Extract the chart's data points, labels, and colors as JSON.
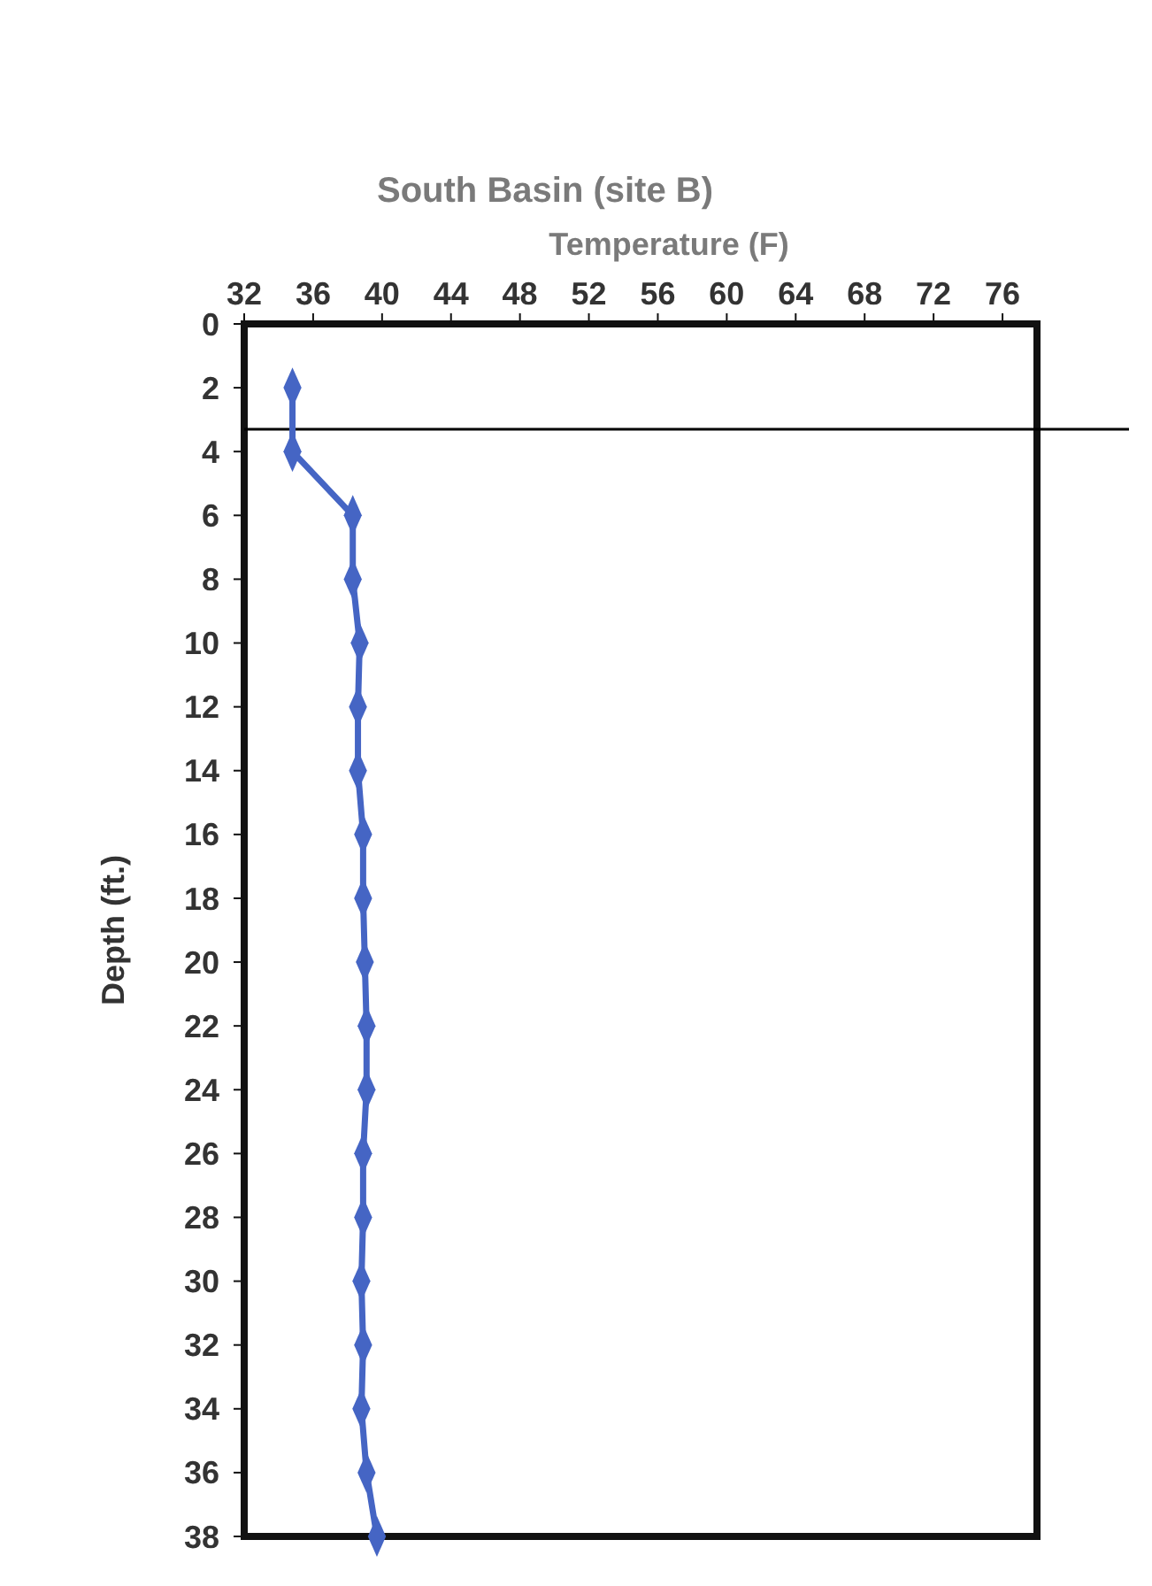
{
  "chart_data": {
    "type": "line",
    "title": "South Basin (site B)",
    "xlabel": "Temperature (F)",
    "ylabel": "Depth (ft.)",
    "xlim": [
      32,
      78
    ],
    "xticks": [
      32,
      36,
      40,
      44,
      48,
      52,
      56,
      60,
      64,
      68,
      72,
      76
    ],
    "ylim": [
      38,
      0
    ],
    "yticks": [
      0,
      2,
      4,
      6,
      8,
      10,
      12,
      14,
      16,
      18,
      20,
      22,
      24,
      26,
      28,
      30,
      32,
      34,
      36,
      38
    ],
    "series": [
      {
        "color": "#4565c4",
        "x": [
          34.8,
          34.8,
          38.3,
          38.3,
          38.7,
          38.6,
          38.6,
          38.9,
          38.9,
          39.0,
          39.1,
          39.1,
          38.9,
          38.9,
          38.8,
          38.9,
          38.8,
          39.1,
          39.7
        ],
        "values": [
          2,
          4,
          6,
          8,
          10,
          12,
          14,
          16,
          18,
          20,
          22,
          24,
          26,
          28,
          30,
          32,
          34,
          36,
          38
        ]
      }
    ],
    "ref_lines": [
      {
        "axis": "y",
        "value": 3.3,
        "color": "#000000"
      }
    ],
    "marker": "diamond",
    "line_style": "solid",
    "grid": false
  }
}
